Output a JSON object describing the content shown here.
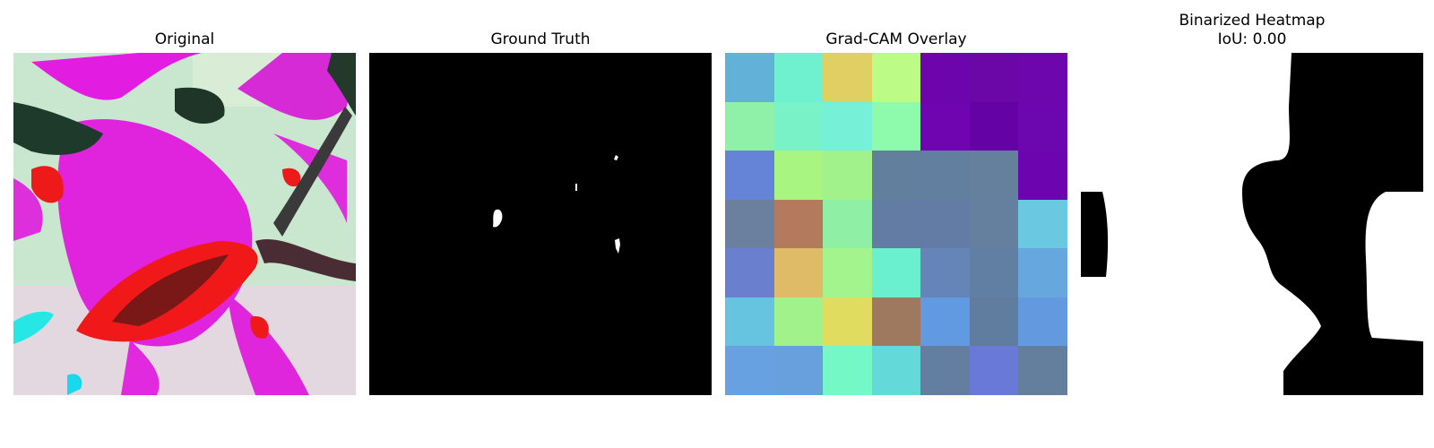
{
  "panels": {
    "original": {
      "title": "Original"
    },
    "ground_truth": {
      "title": "Ground Truth"
    },
    "gradcam": {
      "title": "Grad-CAM Overlay",
      "grid": [
        [
          "#62b1d8",
          "#6ff0cf",
          "#e0d064",
          "#bcfc86",
          "#6c06ac",
          "#6c07a7",
          "#6e06ae"
        ],
        [
          "#8ef1a7",
          "#7af2c8",
          "#76f0d6",
          "#8efaab",
          "#6e05b0",
          "#6402a6",
          "#6c07b0"
        ],
        [
          "#6584d8",
          "#a9f582",
          "#a2f28c",
          "#637f9e",
          "#637f9f",
          "#65809c",
          "#6c05af"
        ],
        [
          "#6a809e",
          "#b47a5d",
          "#8ff0a5",
          "#637ca4",
          "#637ca5",
          "#65809e",
          "#6ac9e0"
        ],
        [
          "#6a7fce",
          "#e0bb67",
          "#a4f48d",
          "#6af0cf",
          "#6585b9",
          "#607fa2",
          "#66a8dd"
        ],
        [
          "#67c4e0",
          "#a2f28b",
          "#e0dc60",
          "#9e7960",
          "#619ae0",
          "#607c9e",
          "#6299df"
        ],
        [
          "#67a1e2",
          "#67a0dd",
          "#74f8c6",
          "#63dad9",
          "#647ea1",
          "#6979d7",
          "#647e9e"
        ]
      ]
    },
    "binarized": {
      "title_line1": "Binarized Heatmap",
      "title_line2": "IoU: 0.00"
    }
  }
}
